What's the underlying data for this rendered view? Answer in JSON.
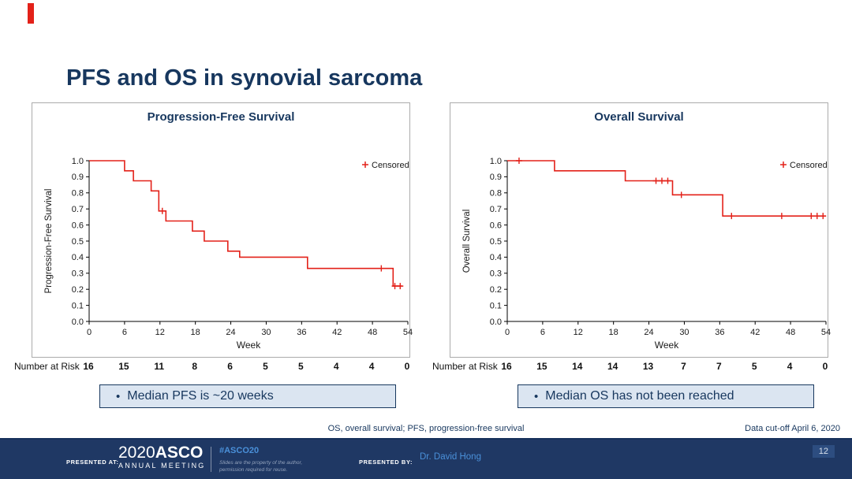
{
  "slide": {
    "title": "PFS and OS in synovial sarcoma",
    "bullet": "•",
    "footnote": "OS, overall survival; PFS, progression-free survival",
    "data_cutoff": "Data cut-off April 6, 2020",
    "page_number": "12"
  },
  "colors": {
    "navy": "#17375e",
    "curve_red": "#e32119",
    "callout_bg": "#dbe5f1",
    "footer_bg": "#1f3864",
    "link_blue": "#4a90d9"
  },
  "chart_data": [
    {
      "type": "line",
      "subtype": "kaplan-meier-step",
      "title": "Progression-Free Survival",
      "xlabel": "Week",
      "ylabel": "Progression-Free Survival",
      "legend": "Censored",
      "color": "#e32119",
      "xlim": [
        0,
        54
      ],
      "ylim": [
        0,
        1
      ],
      "xticks": [
        0,
        6,
        12,
        18,
        24,
        30,
        36,
        42,
        48,
        54
      ],
      "yticks": [
        0,
        0.1,
        0.2,
        0.3,
        0.4,
        0.5,
        0.6,
        0.7,
        0.8,
        0.9,
        1.0
      ],
      "steps": [
        [
          0,
          1
        ],
        [
          6,
          1
        ],
        [
          6,
          0.9375
        ],
        [
          7.5,
          0.9375
        ],
        [
          7.5,
          0.875
        ],
        [
          10.5,
          0.875
        ],
        [
          10.5,
          0.8125
        ],
        [
          11.8,
          0.8125
        ],
        [
          11.8,
          0.6875
        ],
        [
          13,
          0.6875
        ],
        [
          13,
          0.625
        ],
        [
          17.5,
          0.625
        ],
        [
          17.5,
          0.5625
        ],
        [
          19.5,
          0.5625
        ],
        [
          19.5,
          0.5
        ],
        [
          23.5,
          0.5
        ],
        [
          23.5,
          0.4375
        ],
        [
          25.5,
          0.4375
        ],
        [
          25.5,
          0.4
        ],
        [
          37,
          0.4
        ],
        [
          37,
          0.33
        ],
        [
          51.5,
          0.33
        ],
        [
          51.5,
          0.22
        ],
        [
          53,
          0.22
        ]
      ],
      "censors": [
        [
          12.4,
          0.6875
        ],
        [
          49.5,
          0.33
        ],
        [
          51.8,
          0.22
        ],
        [
          52.7,
          0.22
        ]
      ],
      "number_at_risk_label": "Number at Risk",
      "number_at_risk": [
        16,
        15,
        11,
        8,
        6,
        5,
        5,
        4,
        4,
        0
      ],
      "callout": "Median PFS is ~20 weeks"
    },
    {
      "type": "line",
      "subtype": "kaplan-meier-step",
      "title": "Overall Survival",
      "xlabel": "Week",
      "ylabel": "Overall Survival",
      "legend": "Censored",
      "color": "#e32119",
      "xlim": [
        0,
        54
      ],
      "ylim": [
        0,
        1
      ],
      "xticks": [
        0,
        6,
        12,
        18,
        24,
        30,
        36,
        42,
        48,
        54
      ],
      "yticks": [
        0,
        0.1,
        0.2,
        0.3,
        0.4,
        0.5,
        0.6,
        0.7,
        0.8,
        0.9,
        1.0
      ],
      "steps": [
        [
          0,
          1
        ],
        [
          8,
          1
        ],
        [
          8,
          0.9375
        ],
        [
          20,
          0.9375
        ],
        [
          20,
          0.875
        ],
        [
          28,
          0.875
        ],
        [
          28,
          0.7875
        ],
        [
          36.5,
          0.7875
        ],
        [
          36.5,
          0.656
        ],
        [
          54,
          0.656
        ]
      ],
      "censors": [
        [
          2,
          1
        ],
        [
          25.2,
          0.875
        ],
        [
          26.2,
          0.875
        ],
        [
          27.2,
          0.875
        ],
        [
          29.5,
          0.7875
        ],
        [
          38,
          0.656
        ],
        [
          46.5,
          0.656
        ],
        [
          51.5,
          0.656
        ],
        [
          52.5,
          0.656
        ],
        [
          53.5,
          0.656
        ]
      ],
      "number_at_risk_label": "Number at Risk",
      "number_at_risk": [
        16,
        15,
        14,
        14,
        13,
        7,
        7,
        5,
        4,
        0
      ],
      "callout": "Median OS has not been reached"
    }
  ],
  "footer": {
    "presented_at_label": "PRESENTED AT:",
    "logo_year": "2020",
    "logo_name": "ASCO",
    "logo_sub": "ANNUAL MEETING",
    "hashtag": "#ASCO20",
    "disclaimer": "Slides are the property of the author, permission required for reuse.",
    "presented_by_label": "PRESENTED BY:",
    "presenter": "Dr. David Hong"
  }
}
